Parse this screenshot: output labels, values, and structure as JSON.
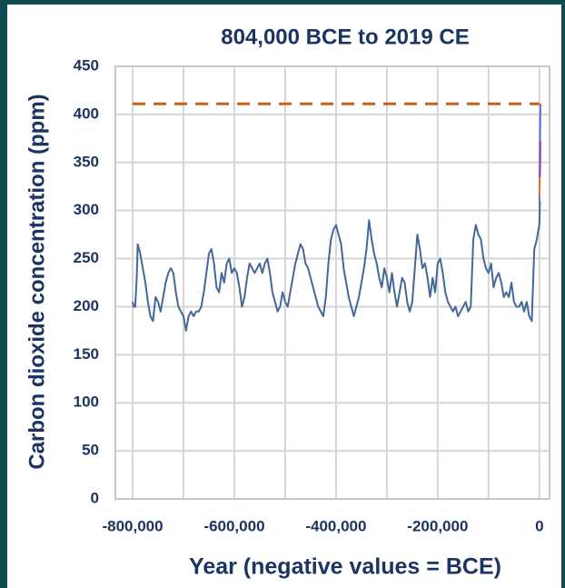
{
  "chart_data": {
    "type": "line",
    "title": "804,000 BCE to 2019 CE",
    "xlabel": "Year (negative values = BCE)",
    "ylabel": "Carbon dioxide concentration (ppm)",
    "xlim": [
      -834000,
      20000
    ],
    "ylim": [
      0,
      450
    ],
    "xticks": [
      {
        "value": -800000,
        "label": "-800,000"
      },
      {
        "value": -600000,
        "label": "-600,000"
      },
      {
        "value": -400000,
        "label": "-400,000"
      },
      {
        "value": -200000,
        "label": "-200,000"
      },
      0
    ],
    "xgrid": [
      -800000,
      -700000,
      -600000,
      -500000,
      -400000,
      -300000,
      -200000,
      -100000,
      0
    ],
    "yticks": [
      0,
      50,
      100,
      150,
      200,
      250,
      300,
      350,
      400,
      450
    ],
    "grid": true,
    "series": [
      {
        "color": "#43689a",
        "dashed": false,
        "x": [
          -800000,
          -798000,
          -795000,
          -792000,
          -790000,
          -785000,
          -780000,
          -775000,
          -770000,
          -765000,
          -760000,
          -755000,
          -750000,
          -745000,
          -740000,
          -735000,
          -730000,
          -725000,
          -720000,
          -715000,
          -710000,
          -705000,
          -700000,
          -695000,
          -690000,
          -685000,
          -680000,
          -675000,
          -670000,
          -665000,
          -660000,
          -655000,
          -650000,
          -645000,
          -640000,
          -635000,
          -630000,
          -625000,
          -620000,
          -615000,
          -610000,
          -605000,
          -600000,
          -595000,
          -590000,
          -585000,
          -580000,
          -575000,
          -570000,
          -565000,
          -560000,
          -555000,
          -550000,
          -545000,
          -540000,
          -535000,
          -530000,
          -525000,
          -520000,
          -515000,
          -510000,
          -505000,
          -500000,
          -495000,
          -490000,
          -485000,
          -480000,
          -475000,
          -470000,
          -465000,
          -460000,
          -455000,
          -450000,
          -445000,
          -440000,
          -435000,
          -430000,
          -425000,
          -420000,
          -415000,
          -410000,
          -405000,
          -400000,
          -395000,
          -390000,
          -385000,
          -380000,
          -375000,
          -370000,
          -365000,
          -360000,
          -355000,
          -350000,
          -345000,
          -340000,
          -335000,
          -330000,
          -325000,
          -320000,
          -315000,
          -310000,
          -305000,
          -300000,
          -295000,
          -290000,
          -285000,
          -280000,
          -275000,
          -270000,
          -265000,
          -260000,
          -255000,
          -250000,
          -245000,
          -240000,
          -235000,
          -230000,
          -225000,
          -220000,
          -215000,
          -210000,
          -205000,
          -200000,
          -195000,
          -190000,
          -185000,
          -180000,
          -175000,
          -170000,
          -165000,
          -160000,
          -155000,
          -150000,
          -145000,
          -140000,
          -135000,
          -130000,
          -125000,
          -120000,
          -115000,
          -110000,
          -105000,
          -100000,
          -95000,
          -90000,
          -85000,
          -80000,
          -75000,
          -70000,
          -65000,
          -60000,
          -55000,
          -50000,
          -45000,
          -40000,
          -35000,
          -30000,
          -25000,
          -20000,
          -15000,
          -10000,
          -5000,
          -2000,
          0,
          1000
        ],
        "values": [
          205,
          200,
          200,
          230,
          265,
          255,
          240,
          225,
          205,
          190,
          185,
          210,
          205,
          195,
          210,
          225,
          235,
          240,
          235,
          215,
          200,
          195,
          190,
          175,
          190,
          195,
          190,
          195,
          195,
          200,
          215,
          235,
          255,
          260,
          245,
          220,
          215,
          235,
          225,
          245,
          250,
          235,
          240,
          235,
          220,
          200,
          210,
          230,
          245,
          240,
          235,
          240,
          245,
          235,
          245,
          250,
          235,
          215,
          205,
          195,
          200,
          215,
          205,
          200,
          215,
          230,
          245,
          255,
          265,
          260,
          245,
          240,
          230,
          220,
          210,
          200,
          195,
          190,
          210,
          245,
          270,
          280,
          285,
          275,
          265,
          240,
          225,
          210,
          200,
          190,
          200,
          210,
          225,
          240,
          260,
          290,
          270,
          255,
          245,
          230,
          220,
          240,
          230,
          215,
          235,
          215,
          200,
          215,
          230,
          225,
          205,
          195,
          205,
          240,
          275,
          260,
          240,
          245,
          230,
          210,
          230,
          215,
          245,
          250,
          235,
          215,
          205,
          200,
          195,
          200,
          190,
          195,
          200,
          205,
          195,
          200,
          270,
          285,
          275,
          270,
          250,
          240,
          235,
          245,
          220,
          230,
          235,
          225,
          210,
          215,
          210,
          225,
          205,
          200,
          200,
          205,
          195,
          205,
          190,
          185,
          260,
          270,
          280,
          285,
          310
        ]
      },
      {
        "color": "#c8601c",
        "dashed": true,
        "x": [
          -800000,
          0
        ],
        "values": [
          411,
          411
        ]
      },
      {
        "color": "#5a6fd6",
        "dashed": false,
        "x": [
          0,
          1000,
          2019
        ],
        "values": [
          310,
          360,
          411
        ]
      },
      {
        "color": "#e07b2a",
        "dashed": false,
        "x": [
          0,
          500,
          1000
        ],
        "values": [
          315,
          325,
          335
        ]
      },
      {
        "color": "#a13fb0",
        "dashed": false,
        "x": [
          1000,
          1500,
          2019
        ],
        "values": [
          335,
          350,
          372
        ]
      }
    ]
  }
}
